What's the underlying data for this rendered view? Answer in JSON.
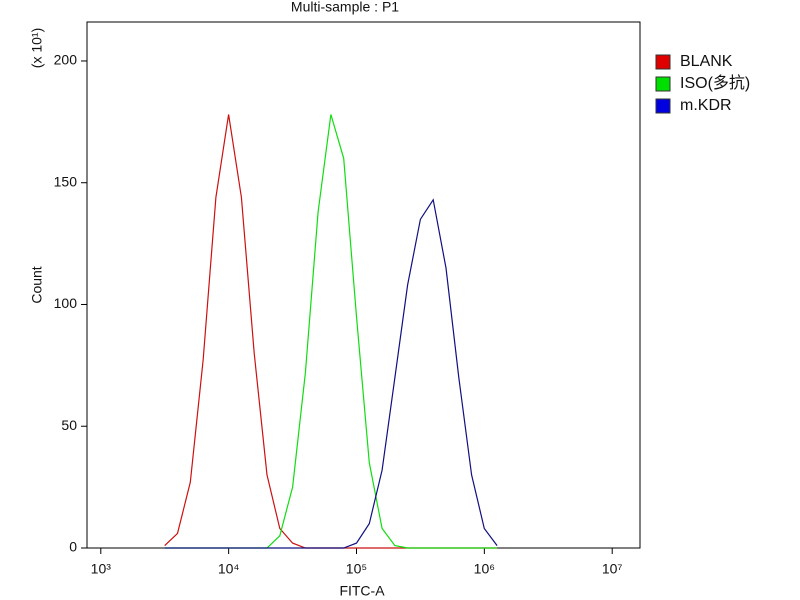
{
  "chart_data": {
    "type": "line",
    "title": "Multi-sample : P1",
    "x_label": "FITC-A",
    "y_label": "Count",
    "y_multiplier": "(x 10¹)",
    "x_scale": "log",
    "xlim": [
      780,
      16500000
    ],
    "xticks": [
      {
        "value": 1000,
        "label": "10³"
      },
      {
        "value": 10000,
        "label": "10⁴"
      },
      {
        "value": 100000,
        "label": "10⁵"
      },
      {
        "value": 1000000,
        "label": "10⁶"
      },
      {
        "value": 10000000,
        "label": "10⁷"
      }
    ],
    "ylim": [
      0,
      216
    ],
    "yticks": [
      0,
      50,
      100,
      150,
      200
    ],
    "legend": "right",
    "x": [
      3162,
      3981,
      5012,
      6310,
      7943,
      10000,
      12589,
      15849,
      19953,
      25119,
      31623,
      39811,
      50119,
      63096,
      79433,
      100000,
      125893,
      158489,
      199526,
      251189,
      316228,
      398107,
      501187,
      630957,
      794328,
      1000000,
      1258925
    ],
    "series": [
      {
        "name": "BLANK",
        "color": "#cc1010",
        "legend_color": "#e00000",
        "values": [
          1,
          6,
          27,
          77,
          144,
          178,
          144,
          80,
          30,
          8,
          2,
          0,
          0,
          0,
          0,
          0,
          0,
          0,
          0,
          0,
          0,
          0,
          0,
          0,
          0,
          0,
          0
        ]
      },
      {
        "name": "ISO(多抗)",
        "color": "#10dd10",
        "legend_color": "#00e000",
        "values": [
          0,
          0,
          0,
          0,
          0,
          0,
          0,
          0,
          0,
          5,
          25,
          72,
          138,
          178,
          160,
          95,
          35,
          8,
          1,
          0,
          0,
          0,
          0,
          0,
          0,
          0,
          0
        ]
      },
      {
        "name": "m.KDR",
        "color": "#101080",
        "legend_color": "#0000e0",
        "values": [
          0,
          0,
          0,
          0,
          0,
          0,
          0,
          0,
          0,
          0,
          0,
          0,
          0,
          0,
          0,
          2,
          10,
          32,
          70,
          108,
          135,
          143,
          115,
          70,
          30,
          8,
          1
        ]
      }
    ]
  }
}
